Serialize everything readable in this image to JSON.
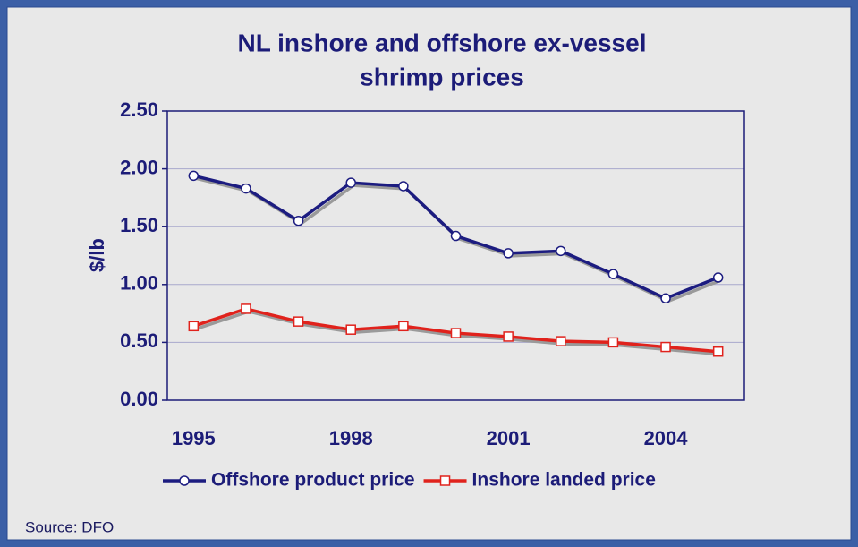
{
  "chart_data": {
    "type": "line",
    "title": [
      "NL inshore and offshore ex-vessel",
      "shrimp prices"
    ],
    "y_label": "$/lb",
    "source": "Source: DFO",
    "x": [
      1995,
      1996,
      1997,
      1998,
      1999,
      2000,
      2001,
      2002,
      2003,
      2004,
      2005
    ],
    "xlim": [
      1994.5,
      2005.5
    ],
    "xticks": [
      1995,
      1998,
      2001,
      2004
    ],
    "ylim": [
      0,
      2.5
    ],
    "yticks": [
      {
        "value": 0,
        "label": "0.00"
      },
      {
        "value": 0.5,
        "label": "0.50"
      },
      {
        "value": 1,
        "label": "1.00"
      },
      {
        "value": 1.5,
        "label": "1.50"
      },
      {
        "value": 2,
        "label": "2.00"
      },
      {
        "value": 2.5,
        "label": "2.50"
      }
    ],
    "grid": true,
    "legend": "bottom",
    "series": [
      {
        "name": "Offshore product price",
        "color": "#1c1c80",
        "marker": "circle",
        "values": [
          1.94,
          1.83,
          1.55,
          1.88,
          1.85,
          1.42,
          1.27,
          1.29,
          1.09,
          0.88,
          1.06
        ]
      },
      {
        "name": "Inshore landed price",
        "color": "#e0221c",
        "marker": "square",
        "values": [
          0.64,
          0.79,
          0.68,
          0.61,
          0.64,
          0.58,
          0.55,
          0.51,
          0.5,
          0.46,
          0.42
        ]
      }
    ]
  }
}
